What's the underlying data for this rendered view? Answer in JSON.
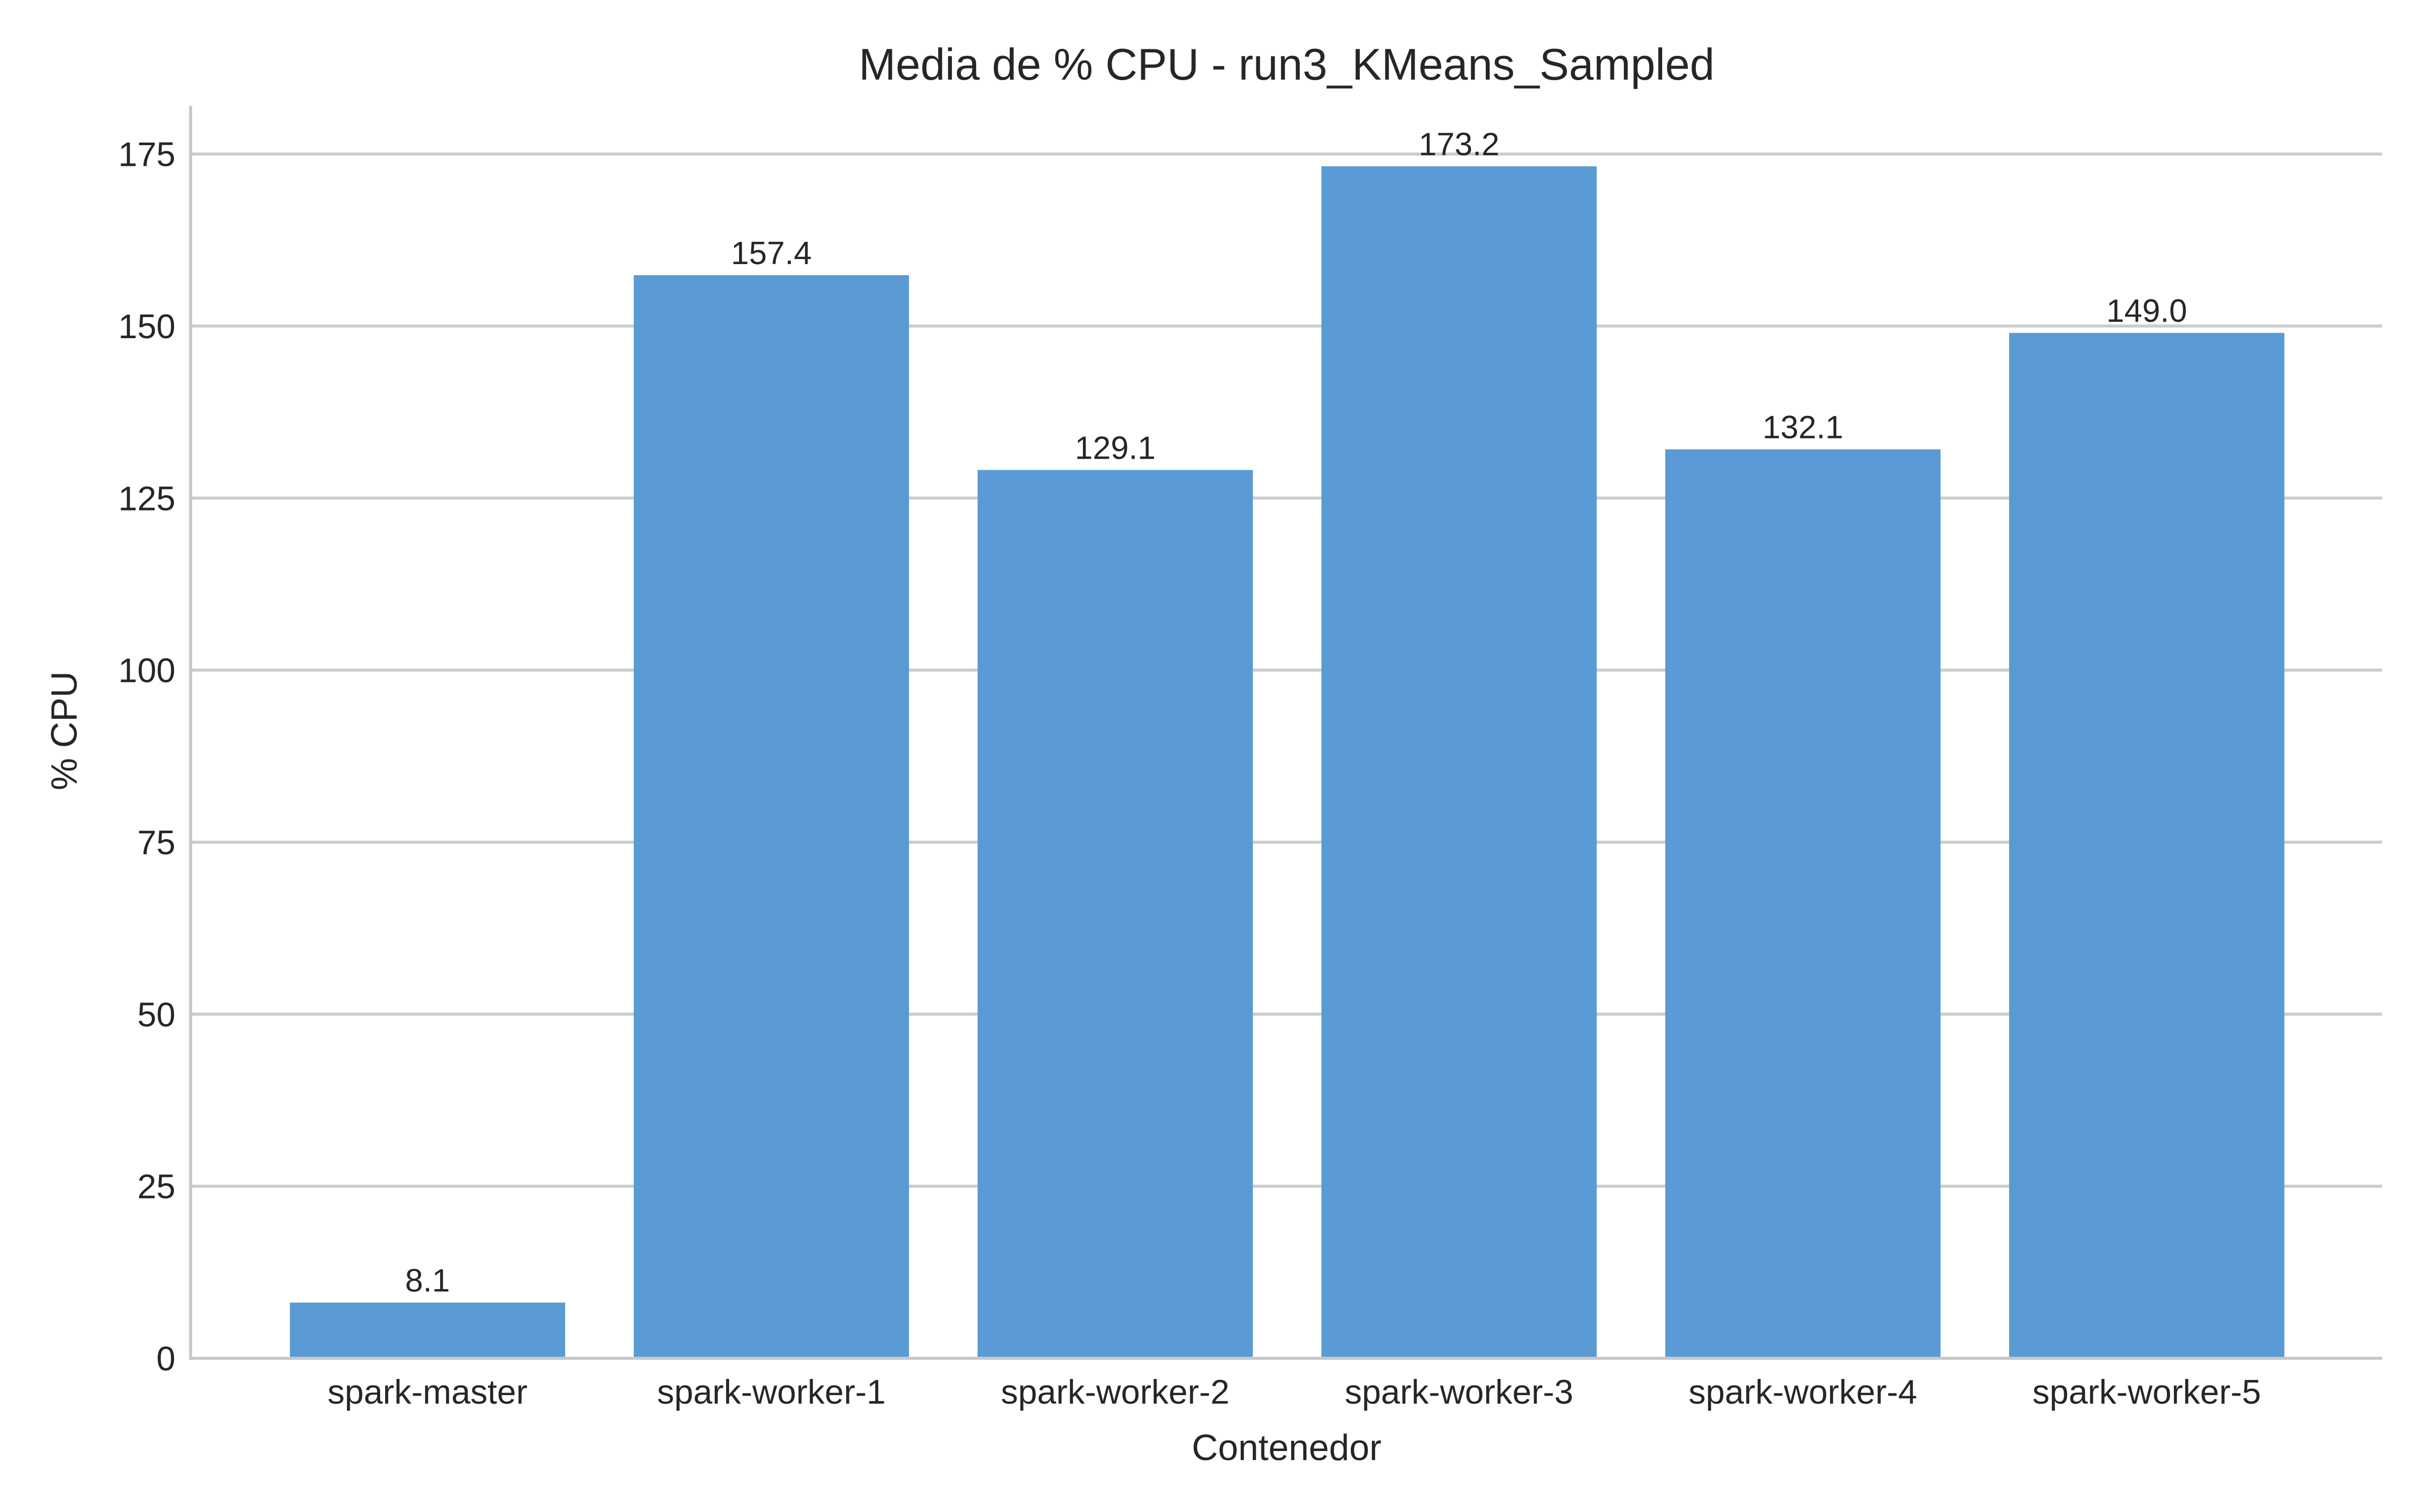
{
  "chart_data": {
    "type": "bar",
    "title": "Media de % CPU - run3_KMeans_Sampled",
    "xlabel": "Contenedor",
    "ylabel": "% CPU",
    "categories": [
      "spark-master",
      "spark-worker-1",
      "spark-worker-2",
      "spark-worker-3",
      "spark-worker-4",
      "spark-worker-5"
    ],
    "values": [
      8.1,
      157.4,
      129.1,
      173.2,
      132.1,
      149.0
    ],
    "value_labels": [
      "8.1",
      "157.4",
      "129.1",
      "173.2",
      "132.1",
      "149.0"
    ],
    "ylim": [
      0,
      182
    ],
    "yticks": [
      0,
      25,
      50,
      75,
      100,
      125,
      150,
      175
    ],
    "ytick_labels": [
      "0",
      "25",
      "50",
      "75",
      "100",
      "125",
      "150",
      "175"
    ],
    "grid": "y-major",
    "legend": "none",
    "bar_color": "#5b9bd5"
  }
}
